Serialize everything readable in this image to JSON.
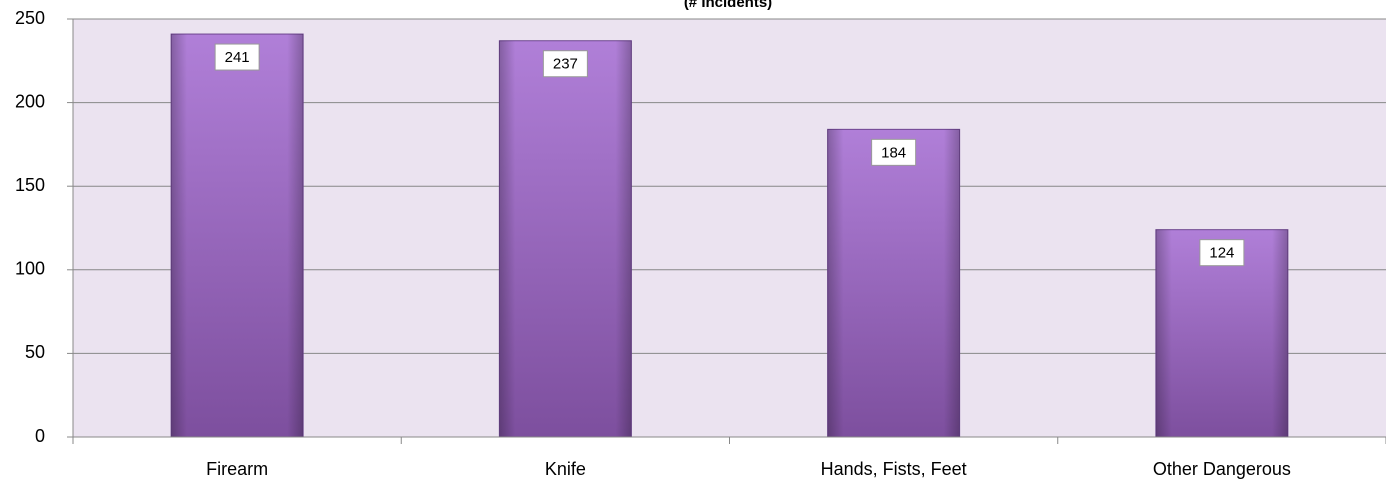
{
  "chart_data": {
    "type": "bar",
    "title": "(# Incidents)",
    "categories": [
      "Firearm",
      "Knife",
      "Hands, Fists, Feet",
      "Other Dangerous"
    ],
    "values": [
      241,
      237,
      184,
      124
    ],
    "color": "#a070c8",
    "ylim": [
      0,
      250
    ],
    "yticks": [
      0,
      50,
      100,
      150,
      200,
      250
    ],
    "grid": true
  }
}
